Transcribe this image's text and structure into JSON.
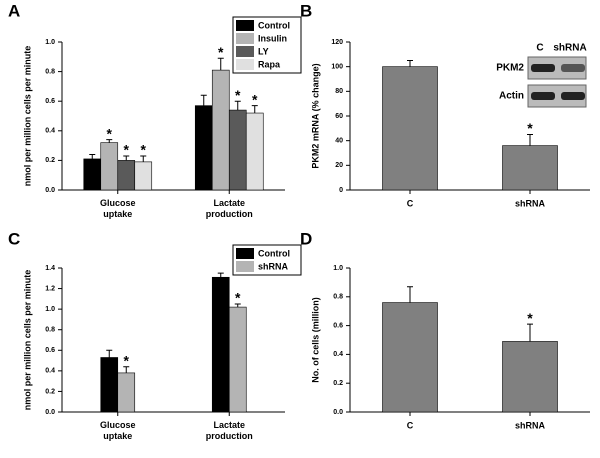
{
  "chart_data": [
    {
      "type": "bar",
      "panel": "A",
      "ylabel": "nmol per million cells per minute",
      "categories": [
        "Glucose uptake",
        "Lactate production"
      ],
      "series": [
        {
          "name": "Control",
          "color": "#000000",
          "values": [
            0.21,
            0.57
          ],
          "errors": [
            0.03,
            0.07
          ],
          "labels": [
            null,
            null
          ]
        },
        {
          "name": "Insulin",
          "color": "#b4b4b4",
          "values": [
            0.32,
            0.81
          ],
          "errors": [
            0.02,
            0.08
          ],
          "labels": [
            "*",
            "*"
          ]
        },
        {
          "name": "LY",
          "color": "#5a5a5a",
          "values": [
            0.2,
            0.54
          ],
          "errors": [
            0.03,
            0.06
          ],
          "labels": [
            "*",
            "*"
          ]
        },
        {
          "name": "Rapa",
          "color": "#e0e0e0",
          "values": [
            0.19,
            0.52
          ],
          "errors": [
            0.04,
            0.05
          ],
          "labels": [
            "*",
            "*"
          ]
        }
      ],
      "ylim": [
        0,
        1.0
      ],
      "yticks": [
        {
          "value": 0,
          "label": "0.0"
        },
        0.2,
        0.4,
        0.6,
        0.8,
        {
          "value": 1.0,
          "label": "1.0"
        }
      ],
      "legend": "upper right"
    },
    {
      "type": "bar",
      "panel": "B",
      "ylabel": "PKM2 mRNA (% change)",
      "categories": [
        "C",
        "shRNA"
      ],
      "color": "#808080",
      "values": [
        100,
        36
      ],
      "errors": [
        5,
        9
      ],
      "labels": [
        null,
        "*"
      ],
      "ylim": [
        0,
        120
      ],
      "yticks": [
        0,
        20,
        40,
        60,
        80,
        100,
        120
      ],
      "inset": {
        "columns": [
          "C",
          "shRNA"
        ],
        "rows": [
          "PKM2",
          "Actin"
        ]
      }
    },
    {
      "type": "bar",
      "panel": "C",
      "ylabel": "nmol per million cells per minute",
      "categories": [
        "Glucose uptake",
        "Lactate production"
      ],
      "series": [
        {
          "name": "Control",
          "color": "#000000",
          "values": [
            0.53,
            1.31
          ],
          "errors": [
            0.07,
            0.04
          ],
          "labels": [
            null,
            null
          ]
        },
        {
          "name": "shRNA",
          "color": "#b4b4b4",
          "values": [
            0.38,
            1.02
          ],
          "errors": [
            0.06,
            0.03
          ],
          "labels": [
            "*",
            "*"
          ]
        }
      ],
      "ylim": [
        0,
        1.4
      ],
      "yticks": [
        {
          "value": 0,
          "label": "0.0"
        },
        0.2,
        0.4,
        0.6,
        0.8,
        {
          "value": 1.0,
          "label": "1.0"
        },
        1.2,
        1.4
      ],
      "legend": "upper right"
    },
    {
      "type": "bar",
      "panel": "D",
      "ylabel": "No. of cells (million)",
      "categories": [
        "C",
        "shRNA"
      ],
      "color": "#808080",
      "values": [
        0.76,
        0.49
      ],
      "errors": [
        0.11,
        0.12
      ],
      "labels": [
        null,
        "*"
      ],
      "ylim": [
        0,
        1.0
      ],
      "yticks": [
        {
          "value": 0,
          "label": "0.0"
        },
        0.2,
        0.4,
        0.6,
        0.8,
        {
          "value": 1.0,
          "label": "1.0"
        }
      ]
    }
  ]
}
